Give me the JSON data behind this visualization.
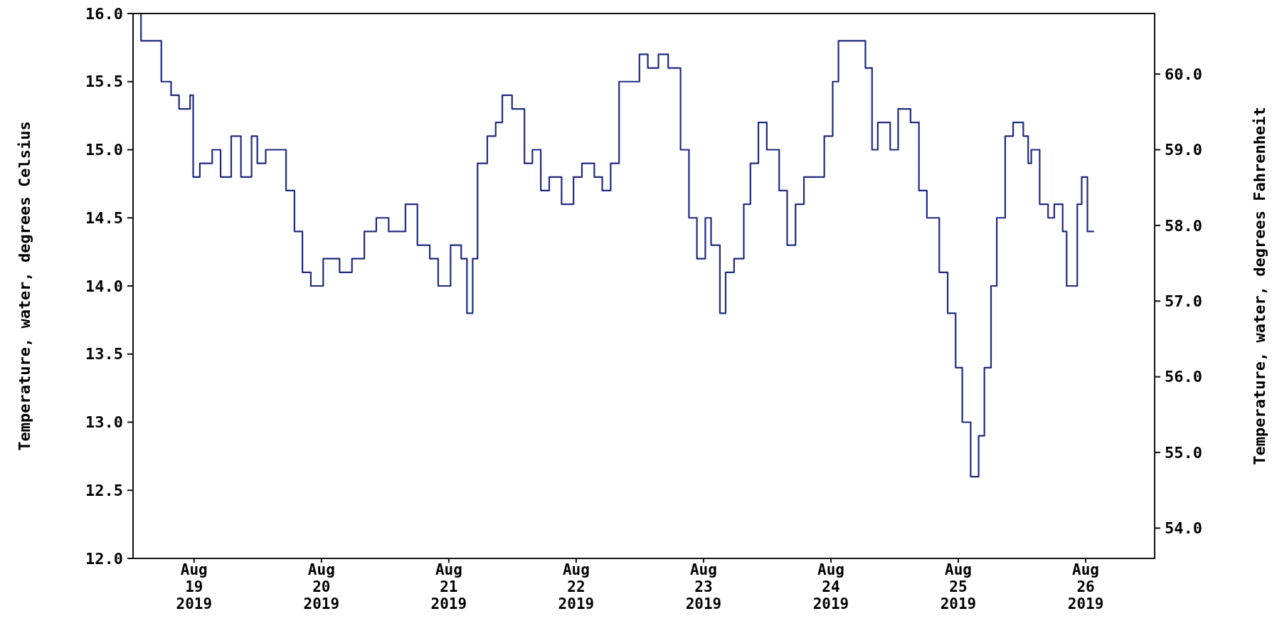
{
  "chart_data": {
    "type": "step",
    "ylabel": "Temperature, water, degrees Celsius",
    "y2label": "Temperature, water, degrees Fahrenheit",
    "xlim": [
      "2019-08-18T12:30",
      "2019-08-26T13:00"
    ],
    "xticks": [
      {
        "value": "2019-08-19",
        "label": "Aug 19 2019"
      },
      {
        "value": "2019-08-20",
        "label": "Aug 20 2019"
      },
      {
        "value": "2019-08-21",
        "label": "Aug 21 2019"
      },
      {
        "value": "2019-08-22",
        "label": "Aug 22 2019"
      },
      {
        "value": "2019-08-23",
        "label": "Aug 23 2019"
      },
      {
        "value": "2019-08-24",
        "label": "Aug 24 2019"
      },
      {
        "value": "2019-08-25",
        "label": "Aug 25 2019"
      },
      {
        "value": "2019-08-26",
        "label": "Aug 26 2019"
      }
    ],
    "ylim": [
      12,
      16
    ],
    "yticks": [
      {
        "value": 12,
        "label": "12.0"
      },
      {
        "value": 12.5,
        "label": "12.5"
      },
      {
        "value": 13,
        "label": "13.0"
      },
      {
        "value": 13.5,
        "label": "13.5"
      },
      {
        "value": 14,
        "label": "14.0"
      },
      {
        "value": 14.5,
        "label": "14.5"
      },
      {
        "value": 15,
        "label": "15.0"
      },
      {
        "value": 15.5,
        "label": "15.5"
      },
      {
        "value": 16,
        "label": "16.0"
      }
    ],
    "y2lim": [
      53.6,
      60.8
    ],
    "y2ticks": [
      {
        "value": 54,
        "label": "54.0"
      },
      {
        "value": 55,
        "label": "55.0"
      },
      {
        "value": 56,
        "label": "56.0"
      },
      {
        "value": 57,
        "label": "57.0"
      },
      {
        "value": 58,
        "label": "58.0"
      },
      {
        "value": 59,
        "label": "59.0"
      },
      {
        "value": 60,
        "label": "60.0"
      }
    ],
    "grid": false,
    "series": [
      {
        "color": "#1f2a80",
        "x": [
          "2019-08-18T13:00",
          "2019-08-18T14:00",
          "2019-08-18T16:30",
          "2019-08-18T17:50",
          "2019-08-18T19:40",
          "2019-08-18T21:10",
          "2019-08-18T23:15",
          "2019-08-18T23:50",
          "2019-08-19T01:05",
          "2019-08-19T03:25",
          "2019-08-19T05:00",
          "2019-08-19T07:00",
          "2019-08-19T08:50",
          "2019-08-19T10:50",
          "2019-08-19T11:55",
          "2019-08-19T13:30",
          "2019-08-19T15:50",
          "2019-08-19T17:20",
          "2019-08-19T18:55",
          "2019-08-19T20:25",
          "2019-08-19T22:00",
          "2019-08-20T00:20",
          "2019-08-20T03:25",
          "2019-08-20T05:45",
          "2019-08-20T08:05",
          "2019-08-20T10:20",
          "2019-08-20T12:40",
          "2019-08-20T15:50",
          "2019-08-20T18:05",
          "2019-08-20T20:25",
          "2019-08-20T22:00",
          "2019-08-21T00:20",
          "2019-08-21T02:20",
          "2019-08-21T03:25",
          "2019-08-21T04:30",
          "2019-08-21T05:25",
          "2019-08-21T07:15",
          "2019-08-21T08:50",
          "2019-08-21T10:05",
          "2019-08-21T11:55",
          "2019-08-21T14:15",
          "2019-08-21T15:45",
          "2019-08-21T17:20",
          "2019-08-21T18:55",
          "2019-08-21T21:15",
          "2019-08-21T23:30",
          "2019-08-22T01:05",
          "2019-08-22T03:25",
          "2019-08-22T04:55",
          "2019-08-22T06:30",
          "2019-08-22T08:05",
          "2019-08-22T10:20",
          "2019-08-22T11:55",
          "2019-08-22T13:30",
          "2019-08-22T15:30",
          "2019-08-22T17:20",
          "2019-08-22T19:40",
          "2019-08-22T21:15",
          "2019-08-22T22:45",
          "2019-08-23T00:20",
          "2019-08-23T01:25",
          "2019-08-23T03:05",
          "2019-08-23T04:10",
          "2019-08-23T05:45",
          "2019-08-23T07:35",
          "2019-08-23T08:50",
          "2019-08-23T10:20",
          "2019-08-23T11:55",
          "2019-08-23T14:15",
          "2019-08-23T15:45",
          "2019-08-23T17:20",
          "2019-08-23T18:55",
          "2019-08-23T21:15",
          "2019-08-23T22:45",
          "2019-08-24T00:20",
          "2019-08-24T01:25",
          "2019-08-24T04:10",
          "2019-08-24T06:30",
          "2019-08-24T07:45",
          "2019-08-24T08:50",
          "2019-08-24T11:10",
          "2019-08-24T12:40",
          "2019-08-24T15:00",
          "2019-08-24T16:35",
          "2019-08-24T18:05",
          "2019-08-24T20:25",
          "2019-08-24T22:00",
          "2019-08-24T23:30",
          "2019-08-25T00:45",
          "2019-08-25T02:20",
          "2019-08-25T03:50",
          "2019-08-25T04:55",
          "2019-08-25T06:10",
          "2019-08-25T07:15",
          "2019-08-25T08:50",
          "2019-08-25T10:20",
          "2019-08-25T12:15",
          "2019-08-25T13:10",
          "2019-08-25T13:45",
          "2019-08-25T15:20",
          "2019-08-25T16:55",
          "2019-08-25T18:05",
          "2019-08-25T19:40",
          "2019-08-25T20:25",
          "2019-08-25T21:30",
          "2019-08-25T22:25",
          "2019-08-25T23:15",
          "2019-08-26T00:20",
          "2019-08-26T01:35"
        ],
        "values": [
          16.0,
          15.8,
          15.8,
          15.5,
          15.4,
          15.3,
          15.4,
          14.8,
          14.9,
          15.0,
          14.8,
          15.1,
          14.8,
          15.1,
          14.9,
          15.0,
          15.0,
          14.7,
          14.4,
          14.1,
          14.0,
          14.2,
          14.1,
          14.2,
          14.4,
          14.5,
          14.4,
          14.6,
          14.3,
          14.2,
          14.0,
          14.3,
          14.2,
          13.8,
          14.2,
          14.9,
          15.1,
          15.2,
          15.4,
          15.3,
          14.9,
          15.0,
          14.7,
          14.8,
          14.6,
          14.8,
          14.9,
          14.8,
          14.7,
          14.9,
          15.5,
          15.5,
          15.7,
          15.6,
          15.7,
          15.6,
          15.0,
          14.5,
          14.2,
          14.5,
          14.3,
          13.8,
          14.1,
          14.2,
          14.6,
          14.9,
          15.2,
          15.0,
          14.7,
          14.3,
          14.6,
          14.8,
          14.8,
          15.1,
          15.5,
          15.8,
          15.8,
          15.6,
          15.0,
          15.2,
          15.0,
          15.3,
          15.2,
          14.7,
          14.5,
          14.1,
          13.8,
          13.4,
          13.0,
          12.6,
          12.9,
          13.4,
          14.0,
          14.5,
          15.1,
          15.2,
          15.1,
          14.9,
          15.0,
          14.6,
          14.5,
          14.6,
          14.4,
          14.0,
          14.0,
          14.6,
          14.8,
          14.4,
          14.4
        ]
      }
    ]
  }
}
